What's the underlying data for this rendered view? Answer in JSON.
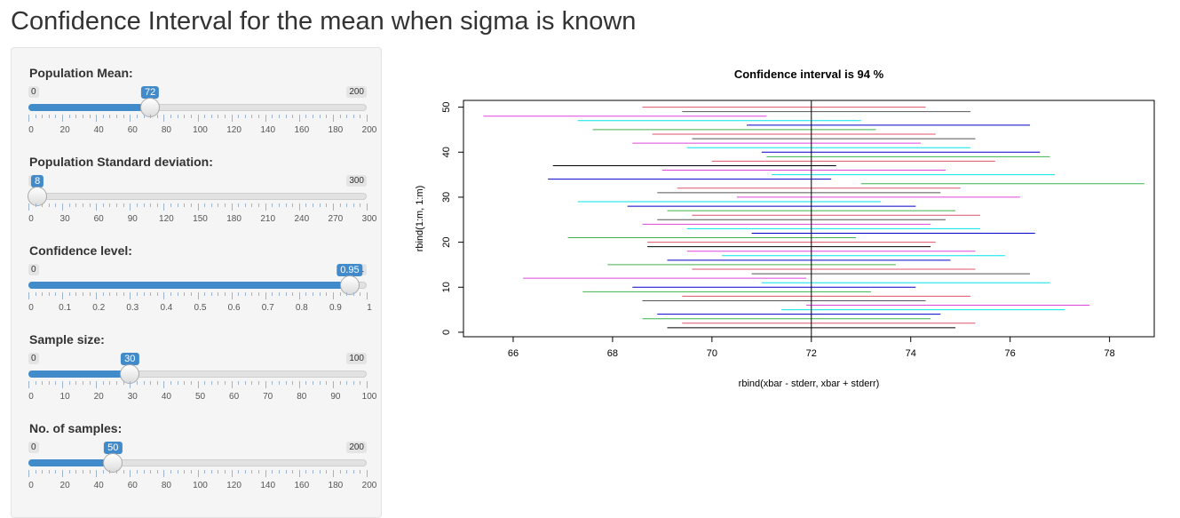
{
  "page": {
    "title": "Confidence Interval for the mean when sigma is known"
  },
  "sliders": [
    {
      "id": "mean",
      "label": "Population Mean:",
      "min": 0,
      "max": 200,
      "value": 72,
      "value_label": "72",
      "min_label": "0",
      "max_label": "200",
      "tick_labels": [
        "0",
        "20",
        "40",
        "60",
        "80",
        "100",
        "120",
        "140",
        "160",
        "180",
        "200"
      ]
    },
    {
      "id": "sd",
      "label": "Population Standard deviation:",
      "min": 0,
      "max": 300,
      "value": 8,
      "value_label": "8",
      "min_label": "0",
      "max_label": "300",
      "tick_labels": [
        "0",
        "30",
        "60",
        "90",
        "120",
        "150",
        "180",
        "210",
        "240",
        "270",
        "300"
      ]
    },
    {
      "id": "conf",
      "label": "Confidence level:",
      "min": 0,
      "max": 1,
      "value": 0.95,
      "value_label": "0.95",
      "min_label": "0",
      "max_label": "1",
      "tick_labels": [
        "0",
        "0.1",
        "0.2",
        "0.3",
        "0.4",
        "0.5",
        "0.6",
        "0.7",
        "0.8",
        "0.9",
        "1"
      ]
    },
    {
      "id": "n",
      "label": "Sample size:",
      "min": 0,
      "max": 100,
      "value": 30,
      "value_label": "30",
      "min_label": "0",
      "max_label": "100",
      "tick_labels": [
        "0",
        "10",
        "20",
        "30",
        "40",
        "50",
        "60",
        "70",
        "80",
        "90",
        "100"
      ]
    },
    {
      "id": "m",
      "label": "No. of samples:",
      "min": 0,
      "max": 200,
      "value": 50,
      "value_label": "50",
      "min_label": "0",
      "max_label": "200",
      "tick_labels": [
        "0",
        "20",
        "40",
        "60",
        "80",
        "100",
        "120",
        "140",
        "160",
        "180",
        "200"
      ]
    }
  ],
  "chart_data": {
    "type": "line",
    "title": "Confidence interval is  94 %",
    "xlabel": "rbind(xbar - stderr, xbar + stderr)",
    "ylabel": "rbind(1:m, 1:m)",
    "xlim": [
      65.0,
      78.9
    ],
    "ylim": [
      -1,
      51.5
    ],
    "x_ticks": [
      66,
      68,
      70,
      72,
      74,
      76,
      78
    ],
    "x_tick_labels": [
      "66",
      "68",
      "70",
      "72",
      "74",
      "76",
      "78"
    ],
    "y_ticks": [
      0,
      10,
      20,
      30,
      40,
      50
    ],
    "y_tick_labels": [
      "0",
      "10",
      "20",
      "30",
      "40",
      "50"
    ],
    "reference_x": 72,
    "grid": false,
    "palette": [
      "#000000",
      "#DF536B",
      "#61D04F",
      "#2297E6",
      "#28E2E5",
      "#CD0BBC",
      "#F5C710",
      "#9E9E9E"
    ],
    "series_colors": [
      "#000000",
      "#DF536B",
      "#3CB44B",
      "#0000CC",
      "#00E5EE",
      "#DD44DD",
      "#E05050",
      "#555555"
    ],
    "intervals": [
      {
        "i": 1,
        "lo": 69.1,
        "hi": 74.9,
        "color": "#000000"
      },
      {
        "i": 2,
        "lo": 69.4,
        "hi": 75.3,
        "color": "#DF536B"
      },
      {
        "i": 3,
        "lo": 68.6,
        "hi": 74.4,
        "color": "#3CB44B"
      },
      {
        "i": 4,
        "lo": 68.9,
        "hi": 74.6,
        "color": "#0000CC"
      },
      {
        "i": 5,
        "lo": 71.4,
        "hi": 77.1,
        "color": "#00E5EE"
      },
      {
        "i": 6,
        "lo": 71.9,
        "hi": 77.6,
        "color": "#DD44DD"
      },
      {
        "i": 7,
        "lo": 68.6,
        "hi": 74.3,
        "color": "#555555"
      },
      {
        "i": 8,
        "lo": 69.4,
        "hi": 75.2,
        "color": "#DF536B"
      },
      {
        "i": 9,
        "lo": 67.4,
        "hi": 73.2,
        "color": "#3CB44B"
      },
      {
        "i": 10,
        "lo": 68.4,
        "hi": 74.1,
        "color": "#0000CC"
      },
      {
        "i": 11,
        "lo": 71.0,
        "hi": 76.8,
        "color": "#00E5EE"
      },
      {
        "i": 12,
        "lo": 66.2,
        "hi": 71.9,
        "color": "#DD44DD"
      },
      {
        "i": 13,
        "lo": 70.8,
        "hi": 76.4,
        "color": "#555555"
      },
      {
        "i": 14,
        "lo": 69.6,
        "hi": 75.3,
        "color": "#DF536B"
      },
      {
        "i": 15,
        "lo": 67.9,
        "hi": 73.7,
        "color": "#3CB44B"
      },
      {
        "i": 16,
        "lo": 69.1,
        "hi": 74.8,
        "color": "#0000CC"
      },
      {
        "i": 17,
        "lo": 70.2,
        "hi": 75.9,
        "color": "#00E5EE"
      },
      {
        "i": 18,
        "lo": 69.5,
        "hi": 75.3,
        "color": "#DD44DD"
      },
      {
        "i": 19,
        "lo": 68.7,
        "hi": 74.4,
        "color": "#000000"
      },
      {
        "i": 20,
        "lo": 68.7,
        "hi": 74.5,
        "color": "#DF536B"
      },
      {
        "i": 21,
        "lo": 67.1,
        "hi": 72.9,
        "color": "#3CB44B"
      },
      {
        "i": 22,
        "lo": 70.8,
        "hi": 76.5,
        "color": "#0000CC"
      },
      {
        "i": 23,
        "lo": 69.5,
        "hi": 75.4,
        "color": "#00E5EE"
      },
      {
        "i": 24,
        "lo": 68.6,
        "hi": 74.4,
        "color": "#DD44DD"
      },
      {
        "i": 25,
        "lo": 68.9,
        "hi": 74.7,
        "color": "#555555"
      },
      {
        "i": 26,
        "lo": 69.6,
        "hi": 75.4,
        "color": "#DF536B"
      },
      {
        "i": 27,
        "lo": 69.1,
        "hi": 74.9,
        "color": "#3CB44B"
      },
      {
        "i": 28,
        "lo": 68.3,
        "hi": 74.1,
        "color": "#0000CC"
      },
      {
        "i": 29,
        "lo": 67.3,
        "hi": 73.4,
        "color": "#00E5EE"
      },
      {
        "i": 30,
        "lo": 70.5,
        "hi": 76.2,
        "color": "#DD44DD"
      },
      {
        "i": 31,
        "lo": 68.9,
        "hi": 74.6,
        "color": "#555555"
      },
      {
        "i": 32,
        "lo": 69.3,
        "hi": 75.0,
        "color": "#DF536B"
      },
      {
        "i": 33,
        "lo": 73.0,
        "hi": 78.7,
        "color": "#3CB44B"
      },
      {
        "i": 34,
        "lo": 66.7,
        "hi": 72.4,
        "color": "#0000CC"
      },
      {
        "i": 35,
        "lo": 71.2,
        "hi": 76.9,
        "color": "#00E5EE"
      },
      {
        "i": 36,
        "lo": 69.0,
        "hi": 74.7,
        "color": "#DD44DD"
      },
      {
        "i": 37,
        "lo": 66.8,
        "hi": 72.5,
        "color": "#000000"
      },
      {
        "i": 38,
        "lo": 70.0,
        "hi": 75.7,
        "color": "#DF536B"
      },
      {
        "i": 39,
        "lo": 71.1,
        "hi": 76.8,
        "color": "#3CB44B"
      },
      {
        "i": 40,
        "lo": 71.0,
        "hi": 76.6,
        "color": "#0000CC"
      },
      {
        "i": 41,
        "lo": 69.5,
        "hi": 75.2,
        "color": "#00E5EE"
      },
      {
        "i": 42,
        "lo": 68.4,
        "hi": 74.2,
        "color": "#DD44DD"
      },
      {
        "i": 43,
        "lo": 69.6,
        "hi": 75.3,
        "color": "#555555"
      },
      {
        "i": 44,
        "lo": 68.8,
        "hi": 74.5,
        "color": "#DF536B"
      },
      {
        "i": 45,
        "lo": 67.6,
        "hi": 73.3,
        "color": "#3CB44B"
      },
      {
        "i": 46,
        "lo": 70.7,
        "hi": 76.4,
        "color": "#0000CC"
      },
      {
        "i": 47,
        "lo": 67.3,
        "hi": 73.0,
        "color": "#00E5EE"
      },
      {
        "i": 48,
        "lo": 65.4,
        "hi": 71.1,
        "color": "#DD44DD"
      },
      {
        "i": 49,
        "lo": 69.4,
        "hi": 75.2,
        "color": "#555555"
      },
      {
        "i": 50,
        "lo": 68.6,
        "hi": 74.3,
        "color": "#DF536B"
      }
    ]
  }
}
